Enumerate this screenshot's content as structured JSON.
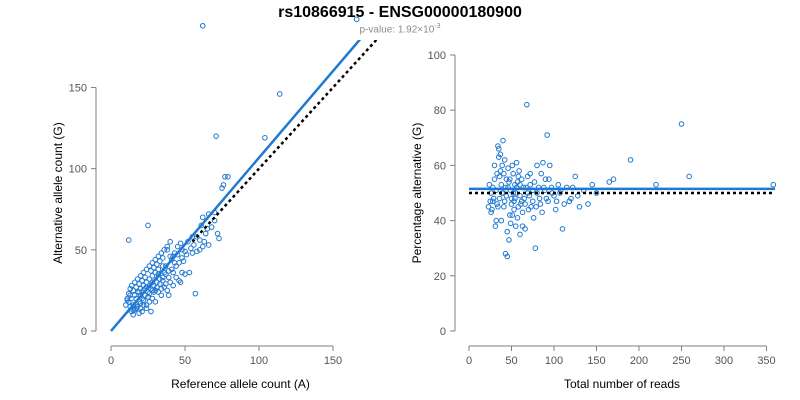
{
  "figure": {
    "title": "rs10866915 - ENSG00000180900",
    "subtitle_prefix": "p-value: 1.92×10",
    "subtitle_exponent": "-3"
  },
  "colors": {
    "points": "#1f78d1",
    "fit_line": "#1f78d1",
    "reference_line": "#000000"
  },
  "chart_data": [
    {
      "type": "scatter",
      "xlabel": "Reference allele count (A)",
      "ylabel": "Alternative allele count (G)",
      "xlim": [
        0,
        175
      ],
      "ylim": [
        0,
        170
      ],
      "xticks": [
        0,
        50,
        100,
        150
      ],
      "yticks": [
        0,
        50,
        100,
        150
      ],
      "fit_line": [
        [
          0,
          0
        ],
        [
          178,
          190
        ]
      ],
      "reference_line": [
        [
          55,
          55
        ],
        [
          190,
          190
        ]
      ],
      "points": [
        [
          166,
          192
        ],
        [
          62,
          188
        ],
        [
          114,
          146
        ],
        [
          71,
          120
        ],
        [
          104,
          119
        ],
        [
          77,
          95
        ],
        [
          79,
          95
        ],
        [
          76,
          90
        ],
        [
          75,
          88
        ],
        [
          66,
          72
        ],
        [
          70,
          73
        ],
        [
          62,
          70
        ],
        [
          72,
          60
        ],
        [
          73,
          57
        ],
        [
          58,
          58
        ],
        [
          63,
          55
        ],
        [
          66,
          53
        ],
        [
          60,
          50
        ],
        [
          52,
          55
        ],
        [
          48,
          50
        ],
        [
          45,
          47
        ],
        [
          55,
          48
        ],
        [
          62,
          52
        ],
        [
          49,
          43
        ],
        [
          43,
          42
        ],
        [
          40,
          46
        ],
        [
          38,
          50
        ],
        [
          35,
          40
        ],
        [
          32,
          38
        ],
        [
          30,
          36
        ],
        [
          28,
          34
        ],
        [
          26,
          32
        ],
        [
          24,
          30
        ],
        [
          22,
          28
        ],
        [
          20,
          26
        ],
        [
          18,
          24
        ],
        [
          16,
          22
        ],
        [
          14,
          20
        ],
        [
          12,
          18
        ],
        [
          13,
          15
        ],
        [
          15,
          13
        ],
        [
          17,
          16
        ],
        [
          19,
          18
        ],
        [
          21,
          20
        ],
        [
          23,
          22
        ],
        [
          25,
          24
        ],
        [
          27,
          26
        ],
        [
          29,
          28
        ],
        [
          31,
          30
        ],
        [
          33,
          32
        ],
        [
          35,
          33
        ],
        [
          37,
          35
        ],
        [
          39,
          37
        ],
        [
          41,
          38
        ],
        [
          25,
          21
        ],
        [
          22,
          19
        ],
        [
          20,
          17
        ],
        [
          18,
          15
        ],
        [
          16,
          13
        ],
        [
          14,
          12
        ],
        [
          24,
          16
        ],
        [
          28,
          20
        ],
        [
          32,
          24
        ],
        [
          36,
          27
        ],
        [
          40,
          30
        ],
        [
          44,
          33
        ],
        [
          48,
          36
        ],
        [
          30,
          18
        ],
        [
          34,
          22
        ],
        [
          38,
          25
        ],
        [
          42,
          28
        ],
        [
          46,
          31
        ],
        [
          50,
          35
        ],
        [
          27,
          12
        ],
        [
          24,
          14
        ],
        [
          21,
          12
        ],
        [
          19,
          11
        ],
        [
          17,
          14
        ],
        [
          15,
          16
        ],
        [
          11,
          20
        ],
        [
          12,
          23
        ],
        [
          13,
          26
        ],
        [
          14,
          28
        ],
        [
          16,
          30
        ],
        [
          18,
          32
        ],
        [
          20,
          34
        ],
        [
          22,
          36
        ],
        [
          24,
          38
        ],
        [
          26,
          40
        ],
        [
          28,
          42
        ],
        [
          30,
          44
        ],
        [
          32,
          46
        ],
        [
          34,
          48
        ],
        [
          36,
          50
        ],
        [
          38,
          52
        ],
        [
          40,
          55
        ],
        [
          25,
          65
        ],
        [
          12,
          56
        ],
        [
          15,
          10
        ],
        [
          20,
          22
        ],
        [
          22,
          25
        ],
        [
          26,
          28
        ],
        [
          29,
          24
        ],
        [
          31,
          27
        ],
        [
          33,
          29
        ],
        [
          35,
          31
        ],
        [
          37,
          29
        ],
        [
          39,
          33
        ],
        [
          42,
          36
        ],
        [
          44,
          40
        ],
        [
          46,
          42
        ],
        [
          48,
          45
        ],
        [
          51,
          47
        ],
        [
          54,
          51
        ],
        [
          56,
          53
        ],
        [
          58,
          49
        ],
        [
          60,
          56
        ],
        [
          64,
          60
        ],
        [
          68,
          64
        ],
        [
          19,
          29
        ],
        [
          21,
          31
        ],
        [
          23,
          33
        ],
        [
          17,
          27
        ],
        [
          15,
          25
        ],
        [
          13,
          22
        ],
        [
          11,
          19
        ],
        [
          10,
          16
        ],
        [
          27,
          37
        ],
        [
          29,
          39
        ],
        [
          31,
          41
        ],
        [
          33,
          43
        ],
        [
          45,
          52
        ],
        [
          47,
          54
        ],
        [
          35,
          45
        ],
        [
          41,
          44
        ],
        [
          43,
          48
        ],
        [
          23,
          26
        ],
        [
          26,
          23
        ],
        [
          28,
          30
        ],
        [
          30,
          25
        ],
        [
          34,
          26
        ],
        [
          36,
          36
        ],
        [
          53,
          36
        ],
        [
          57,
          23
        ],
        [
          47,
          30
        ],
        [
          39,
          22
        ],
        [
          26,
          18
        ],
        [
          20,
          14
        ],
        [
          17,
          20
        ],
        [
          22,
          16
        ],
        [
          19,
          24
        ],
        [
          24,
          27
        ],
        [
          28,
          25
        ],
        [
          32,
          35
        ],
        [
          37,
          40
        ],
        [
          42,
          46
        ],
        [
          50,
          49
        ],
        [
          55,
          58
        ],
        [
          61,
          65
        ],
        [
          65,
          63
        ],
        [
          70,
          68
        ]
      ]
    },
    {
      "type": "scatter",
      "xlabel": "Total number of reads",
      "ylabel": "Percentage alternative (G)",
      "xlim": [
        0,
        360
      ],
      "ylim": [
        0,
        100
      ],
      "xticks": [
        0,
        50,
        100,
        150,
        200,
        250,
        300,
        350
      ],
      "yticks": [
        0,
        20,
        40,
        60,
        80,
        100
      ],
      "fit_line": [
        [
          0,
          51.5
        ],
        [
          360,
          51.5
        ]
      ],
      "reference_line": [
        [
          0,
          50
        ],
        [
          360,
          50
        ]
      ],
      "points": [
        [
          358,
          53
        ],
        [
          250,
          75
        ],
        [
          259,
          56
        ],
        [
          220,
          53
        ],
        [
          190,
          62
        ],
        [
          170,
          55
        ],
        [
          165,
          54
        ],
        [
          150,
          50
        ],
        [
          135,
          51
        ],
        [
          130,
          45
        ],
        [
          125,
          56
        ],
        [
          120,
          48
        ],
        [
          115,
          52
        ],
        [
          112,
          46
        ],
        [
          110,
          37
        ],
        [
          105,
          53
        ],
        [
          100,
          49
        ],
        [
          95,
          60
        ],
        [
          92,
          71
        ],
        [
          90,
          55
        ],
        [
          87,
          61
        ],
        [
          85,
          57
        ],
        [
          82,
          52
        ],
        [
          80,
          60
        ],
        [
          78,
          30
        ],
        [
          75,
          47
        ],
        [
          72,
          57
        ],
        [
          70,
          44
        ],
        [
          68,
          82
        ],
        [
          66,
          37
        ],
        [
          64,
          52
        ],
        [
          62,
          55
        ],
        [
          60,
          49
        ],
        [
          58,
          45
        ],
        [
          56,
          61
        ],
        [
          54,
          53
        ],
        [
          52,
          57
        ],
        [
          50,
          48
        ],
        [
          48,
          42
        ],
        [
          46,
          59
        ],
        [
          45,
          27
        ],
        [
          44,
          55
        ],
        [
          43,
          52
        ],
        [
          42,
          62
        ],
        [
          41,
          45
        ],
        [
          40,
          69
        ],
        [
          39,
          50
        ],
        [
          38,
          40
        ],
        [
          37,
          58
        ],
        [
          36,
          56
        ],
        [
          35,
          63
        ],
        [
          34,
          67
        ],
        [
          33,
          46
        ],
        [
          32,
          51
        ],
        [
          31,
          38
        ],
        [
          30,
          55
        ],
        [
          29,
          48
        ],
        [
          28,
          52
        ],
        [
          27,
          44
        ],
        [
          26,
          50
        ],
        [
          25,
          47
        ],
        [
          24,
          53
        ],
        [
          23,
          45
        ],
        [
          55,
          38
        ],
        [
          57,
          41
        ],
        [
          60,
          35
        ],
        [
          63,
          43
        ],
        [
          66,
          46
        ],
        [
          69,
          50
        ],
        [
          72,
          53
        ],
        [
          76,
          41
        ],
        [
          79,
          45
        ],
        [
          83,
          48
        ],
        [
          86,
          43
        ],
        [
          89,
          51
        ],
        [
          93,
          47
        ],
        [
          97,
          52
        ],
        [
          102,
          44
        ],
        [
          107,
          50
        ],
        [
          118,
          47
        ],
        [
          122,
          52
        ],
        [
          128,
          49
        ],
        [
          140,
          46
        ],
        [
          145,
          53
        ],
        [
          47,
          54
        ],
        [
          49,
          51
        ],
        [
          51,
          60
        ],
        [
          53,
          44
        ],
        [
          35,
          66
        ],
        [
          37,
          64
        ],
        [
          39,
          60
        ],
        [
          41,
          57
        ],
        [
          43,
          28
        ],
        [
          45,
          36
        ],
        [
          47,
          33
        ],
        [
          49,
          39
        ],
        [
          51,
          42
        ],
        [
          53,
          47
        ],
        [
          55,
          50
        ],
        [
          57,
          54
        ],
        [
          59,
          58
        ],
        [
          61,
          46
        ],
        [
          63,
          38
        ],
        [
          65,
          48
        ],
        [
          67,
          52
        ],
        [
          69,
          56
        ],
        [
          71,
          49
        ],
        [
          73,
          45
        ],
        [
          75,
          51
        ],
        [
          77,
          54
        ],
        [
          80,
          50
        ],
        [
          84,
          46
        ],
        [
          88,
          52
        ],
        [
          91,
          48
        ],
        [
          94,
          55
        ],
        [
          98,
          50
        ],
        [
          103,
          47
        ],
        [
          108,
          51
        ],
        [
          33,
          57
        ],
        [
          30,
          60
        ],
        [
          28,
          47
        ],
        [
          26,
          43
        ],
        [
          32,
          40
        ],
        [
          34,
          45
        ],
        [
          36,
          48
        ],
        [
          38,
          53
        ],
        [
          40,
          50
        ],
        [
          42,
          47
        ],
        [
          44,
          49
        ],
        [
          46,
          52
        ],
        [
          48,
          55
        ],
        [
          50,
          46
        ],
        [
          52,
          50
        ],
        [
          54,
          48
        ],
        [
          56,
          52
        ],
        [
          58,
          56
        ],
        [
          60,
          53
        ],
        [
          62,
          47
        ]
      ]
    }
  ]
}
